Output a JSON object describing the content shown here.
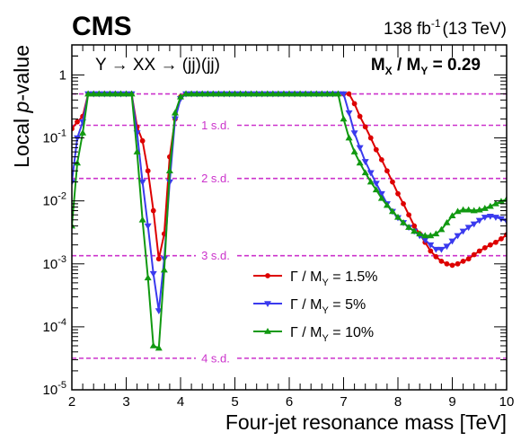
{
  "header": {
    "experiment": "CMS",
    "lumi_prefix": "138 fb",
    "lumi_sup": "-1",
    "lumi_suffix": "(13 TeV)"
  },
  "annotations": {
    "process": "Y → XX → (jj)(jj)",
    "mass_ratio_prefix": "M",
    "mass_ratio_sub_x": "X",
    "mass_ratio_mid": " / M",
    "mass_ratio_sub_y": "Y",
    "mass_ratio_value": " = 0.29"
  },
  "chart_data": {
    "type": "line",
    "xlabel": "Four-jet resonance mass [TeV]",
    "ylabel_prefix": "Local ",
    "ylabel_italic": "p",
    "ylabel_suffix": "-value",
    "xlim": [
      2,
      10
    ],
    "ylim": [
      1e-05,
      3
    ],
    "yscale": "log",
    "x_ticks": [
      2,
      3,
      4,
      5,
      6,
      7,
      8,
      9,
      10
    ],
    "y_ticks": [
      {
        "value": 1,
        "base": "1",
        "exp": ""
      },
      {
        "value": 0.1,
        "base": "10",
        "exp": "-1"
      },
      {
        "value": 0.01,
        "base": "10",
        "exp": "-2"
      },
      {
        "value": 0.001,
        "base": "10",
        "exp": "-3"
      },
      {
        "value": 0.0001,
        "base": "10",
        "exp": "-4"
      },
      {
        "value": 1e-05,
        "base": "10",
        "exp": "-5"
      }
    ],
    "significance_lines": [
      {
        "label": "1 s.d.",
        "value": 0.1587
      },
      {
        "label": "2 s.d.",
        "value": 0.02275
      },
      {
        "label": "3 s.d.",
        "value": 0.00135
      },
      {
        "label": "4 s.d.",
        "value": 3.17e-05
      }
    ],
    "reference_line": 0.5,
    "series": [
      {
        "name_prefix": "Γ / M",
        "name_sub": "Y",
        "name_suffix": " = 1.5%",
        "color": "#dd0000",
        "marker": "circle",
        "x": [
          2.0,
          2.1,
          2.2,
          2.3,
          2.4,
          2.5,
          2.6,
          2.7,
          2.8,
          2.9,
          3.0,
          3.1,
          3.2,
          3.3,
          3.4,
          3.5,
          3.6,
          3.7,
          3.8,
          3.9,
          4.0,
          4.1,
          4.2,
          4.3,
          4.4,
          4.5,
          4.6,
          4.7,
          4.8,
          4.9,
          5.0,
          5.1,
          5.2,
          5.3,
          5.4,
          5.5,
          5.6,
          5.7,
          5.8,
          5.9,
          6.0,
          6.1,
          6.2,
          6.3,
          6.4,
          6.5,
          6.6,
          6.7,
          6.8,
          6.9,
          7.0,
          7.1,
          7.2,
          7.3,
          7.4,
          7.5,
          7.6,
          7.7,
          7.8,
          7.9,
          8.0,
          8.1,
          8.2,
          8.3,
          8.4,
          8.5,
          8.6,
          8.7,
          8.8,
          8.9,
          9.0,
          9.1,
          9.2,
          9.3,
          9.4,
          9.5,
          9.6,
          9.7,
          9.8,
          9.9,
          10.0
        ],
        "y": [
          0.14,
          0.18,
          0.22,
          0.5,
          0.5,
          0.5,
          0.5,
          0.5,
          0.5,
          0.5,
          0.5,
          0.5,
          0.15,
          0.09,
          0.03,
          0.007,
          0.0012,
          0.003,
          0.05,
          0.2,
          0.45,
          0.5,
          0.5,
          0.5,
          0.5,
          0.5,
          0.5,
          0.5,
          0.5,
          0.5,
          0.5,
          0.5,
          0.5,
          0.5,
          0.5,
          0.5,
          0.5,
          0.5,
          0.5,
          0.5,
          0.5,
          0.5,
          0.5,
          0.5,
          0.5,
          0.5,
          0.5,
          0.5,
          0.5,
          0.5,
          0.5,
          0.5,
          0.35,
          0.22,
          0.15,
          0.1,
          0.065,
          0.045,
          0.03,
          0.02,
          0.013,
          0.009,
          0.006,
          0.004,
          0.003,
          0.0022,
          0.0016,
          0.0013,
          0.0011,
          0.001,
          0.00095,
          0.001,
          0.0011,
          0.0012,
          0.0014,
          0.0016,
          0.0018,
          0.002,
          0.0022,
          0.0025,
          0.0029
        ]
      },
      {
        "name_prefix": "Γ / M",
        "name_sub": "Y",
        "name_suffix": " = 5%",
        "color": "#3a3aee",
        "marker": "triangle-down",
        "x": [
          2.0,
          2.1,
          2.2,
          2.3,
          2.4,
          2.5,
          2.6,
          2.7,
          2.8,
          2.9,
          3.0,
          3.1,
          3.2,
          3.3,
          3.4,
          3.5,
          3.6,
          3.7,
          3.8,
          3.9,
          4.0,
          4.1,
          4.2,
          4.3,
          4.4,
          4.5,
          4.6,
          4.7,
          4.8,
          4.9,
          5.0,
          5.1,
          5.2,
          5.3,
          5.4,
          5.5,
          5.6,
          5.7,
          5.8,
          5.9,
          6.0,
          6.1,
          6.2,
          6.3,
          6.4,
          6.5,
          6.6,
          6.7,
          6.8,
          6.9,
          7.0,
          7.1,
          7.2,
          7.3,
          7.4,
          7.5,
          7.6,
          7.7,
          7.8,
          7.9,
          8.0,
          8.1,
          8.2,
          8.3,
          8.4,
          8.5,
          8.6,
          8.7,
          8.8,
          8.9,
          9.0,
          9.1,
          9.2,
          9.3,
          9.4,
          9.5,
          9.6,
          9.7,
          9.8,
          9.9,
          10.0
        ],
        "y": [
          0.02,
          0.1,
          0.18,
          0.5,
          0.5,
          0.5,
          0.5,
          0.5,
          0.5,
          0.5,
          0.5,
          0.5,
          0.12,
          0.02,
          0.004,
          0.0007,
          0.00018,
          0.0012,
          0.02,
          0.2,
          0.42,
          0.5,
          0.5,
          0.5,
          0.5,
          0.5,
          0.5,
          0.5,
          0.5,
          0.5,
          0.5,
          0.5,
          0.5,
          0.5,
          0.5,
          0.5,
          0.5,
          0.5,
          0.5,
          0.5,
          0.5,
          0.5,
          0.5,
          0.5,
          0.5,
          0.5,
          0.5,
          0.5,
          0.5,
          0.5,
          0.5,
          0.25,
          0.12,
          0.07,
          0.042,
          0.028,
          0.019,
          0.013,
          0.009,
          0.0068,
          0.0054,
          0.0045,
          0.0038,
          0.0033,
          0.0028,
          0.0024,
          0.002,
          0.0017,
          0.0017,
          0.0019,
          0.0023,
          0.0028,
          0.0033,
          0.0038,
          0.0043,
          0.0049,
          0.0055,
          0.0057,
          0.0055,
          0.0052,
          0.0048
        ]
      },
      {
        "name_prefix": "Γ / M",
        "name_sub": "Y",
        "name_suffix": " = 10%",
        "color": "#119911",
        "marker": "triangle-up",
        "x": [
          2.0,
          2.1,
          2.2,
          2.3,
          2.4,
          2.5,
          2.6,
          2.7,
          2.8,
          2.9,
          3.0,
          3.1,
          3.2,
          3.3,
          3.4,
          3.5,
          3.6,
          3.7,
          3.8,
          3.9,
          4.0,
          4.1,
          4.2,
          4.3,
          4.4,
          4.5,
          4.6,
          4.7,
          4.8,
          4.9,
          5.0,
          5.1,
          5.2,
          5.3,
          5.4,
          5.5,
          5.6,
          5.7,
          5.8,
          5.9,
          6.0,
          6.1,
          6.2,
          6.3,
          6.4,
          6.5,
          6.6,
          6.7,
          6.8,
          6.9,
          7.0,
          7.1,
          7.2,
          7.3,
          7.4,
          7.5,
          7.6,
          7.7,
          7.8,
          7.9,
          8.0,
          8.1,
          8.2,
          8.3,
          8.4,
          8.5,
          8.6,
          8.7,
          8.8,
          8.9,
          9.0,
          9.1,
          9.2,
          9.3,
          9.4,
          9.5,
          9.6,
          9.7,
          9.8,
          9.9,
          10.0
        ],
        "y": [
          0.004,
          0.04,
          0.12,
          0.5,
          0.5,
          0.5,
          0.5,
          0.5,
          0.5,
          0.5,
          0.5,
          0.5,
          0.06,
          0.005,
          0.0006,
          5e-05,
          4.6e-05,
          0.0008,
          0.03,
          0.25,
          0.45,
          0.5,
          0.5,
          0.5,
          0.5,
          0.5,
          0.5,
          0.5,
          0.5,
          0.5,
          0.5,
          0.5,
          0.5,
          0.5,
          0.5,
          0.5,
          0.5,
          0.5,
          0.5,
          0.5,
          0.5,
          0.5,
          0.5,
          0.5,
          0.5,
          0.5,
          0.5,
          0.5,
          0.5,
          0.5,
          0.2,
          0.1,
          0.06,
          0.04,
          0.028,
          0.02,
          0.015,
          0.011,
          0.0085,
          0.0068,
          0.0055,
          0.0045,
          0.0038,
          0.0033,
          0.003,
          0.0028,
          0.0028,
          0.003,
          0.0035,
          0.0045,
          0.0058,
          0.0068,
          0.0072,
          0.0072,
          0.007,
          0.0072,
          0.0076,
          0.0082,
          0.009,
          0.0098,
          0.0106
        ]
      }
    ]
  }
}
